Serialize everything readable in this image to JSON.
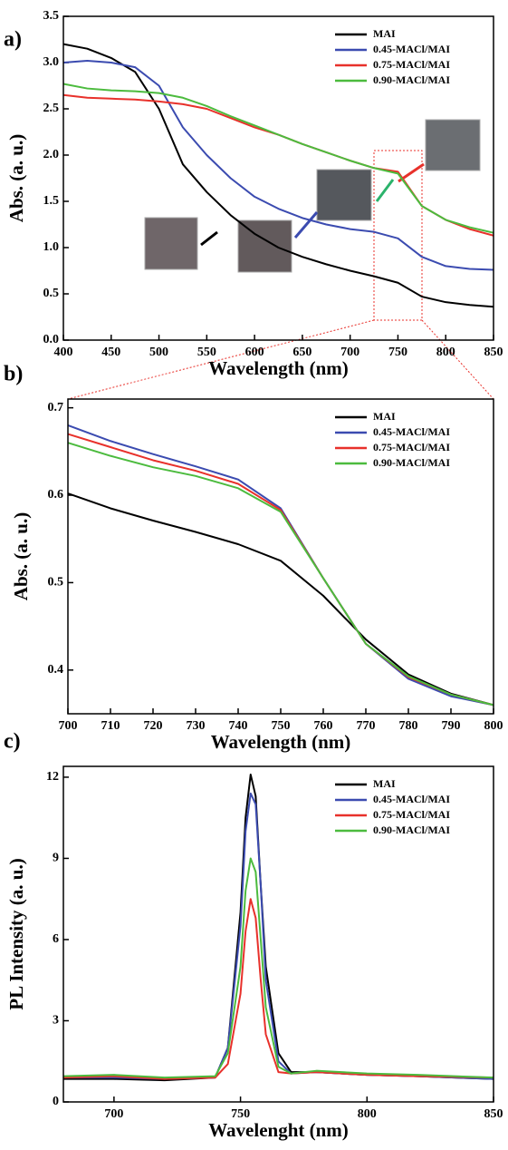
{
  "chart_data": [
    {
      "type": "line",
      "panel_label": "a)",
      "xlabel": "Wavelength (nm)",
      "ylabel": "Abs. (a. u.)",
      "x": [
        400,
        425,
        450,
        475,
        500,
        525,
        550,
        575,
        600,
        625,
        650,
        675,
        700,
        725,
        750,
        775,
        800,
        825,
        850
      ],
      "series": [
        {
          "name": "MAI",
          "color": "#000000",
          "values": [
            3.2,
            3.15,
            3.05,
            2.9,
            2.5,
            1.9,
            1.6,
            1.35,
            1.15,
            1.0,
            0.9,
            0.82,
            0.75,
            0.69,
            0.62,
            0.47,
            0.41,
            0.38,
            0.36
          ]
        },
        {
          "name": "0.45-MACl/MAI",
          "color": "#3b4bb0",
          "values": [
            3.0,
            3.02,
            3.0,
            2.95,
            2.75,
            2.3,
            2.0,
            1.75,
            1.55,
            1.42,
            1.32,
            1.25,
            1.2,
            1.17,
            1.1,
            0.9,
            0.8,
            0.77,
            0.76
          ]
        },
        {
          "name": "0.75-MACl/MAI",
          "color": "#e8312b",
          "values": [
            2.65,
            2.62,
            2.61,
            2.6,
            2.58,
            2.55,
            2.5,
            2.4,
            2.3,
            2.22,
            2.12,
            2.03,
            1.94,
            1.86,
            1.82,
            1.45,
            1.3,
            1.2,
            1.13
          ]
        },
        {
          "name": "0.90-MACl/MAI",
          "color": "#4cbb3e",
          "values": [
            2.77,
            2.72,
            2.7,
            2.69,
            2.67,
            2.62,
            2.53,
            2.42,
            2.32,
            2.22,
            2.12,
            2.03,
            1.94,
            1.86,
            1.8,
            1.45,
            1.3,
            1.22,
            1.16
          ]
        }
      ],
      "xlim": [
        400,
        850
      ],
      "xticks": [
        400,
        450,
        500,
        550,
        600,
        650,
        700,
        750,
        800,
        850
      ],
      "ylim": [
        0,
        3.5
      ],
      "yticks": [
        {
          "value": 0,
          "label": "0.0"
        },
        0.5,
        {
          "value": 1,
          "label": "1.0"
        },
        1.5,
        {
          "value": 2,
          "label": "2.0"
        },
        2.5,
        {
          "value": 3,
          "label": "3.0"
        },
        3.5
      ]
    },
    {
      "type": "line",
      "panel_label": "b)",
      "xlabel": "Wavelength (nm)",
      "ylabel": "Abs. (a. u.)",
      "x": [
        700,
        710,
        720,
        730,
        740,
        750,
        760,
        770,
        780,
        790,
        800
      ],
      "series": [
        {
          "name": "MAI",
          "color": "#000000",
          "values": [
            0.602,
            0.585,
            0.571,
            0.558,
            0.544,
            0.525,
            0.485,
            0.435,
            0.395,
            0.373,
            0.36
          ]
        },
        {
          "name": "0.45-MACl/MAI",
          "color": "#3b4bb0",
          "values": [
            0.68,
            0.662,
            0.647,
            0.633,
            0.618,
            0.585,
            0.505,
            0.43,
            0.39,
            0.37,
            0.36
          ]
        },
        {
          "name": "0.75-MACl/MAI",
          "color": "#e8312b",
          "values": [
            0.67,
            0.655,
            0.64,
            0.628,
            0.613,
            0.583,
            0.505,
            0.43,
            0.392,
            0.372,
            0.36
          ]
        },
        {
          "name": "0.90-MACl/MAI",
          "color": "#4cbb3e",
          "values": [
            0.66,
            0.645,
            0.632,
            0.622,
            0.608,
            0.581,
            0.505,
            0.43,
            0.393,
            0.372,
            0.36
          ]
        }
      ],
      "xlim": [
        700,
        800
      ],
      "xticks": [
        700,
        710,
        720,
        730,
        740,
        750,
        760,
        770,
        780,
        790,
        800
      ],
      "ylim": [
        0.35,
        0.71
      ],
      "yticks": [
        0.4,
        0.5,
        0.6,
        0.7
      ]
    },
    {
      "type": "line",
      "panel_label": "c)",
      "xlabel": "Wavelenght (nm)",
      "ylabel": "PL Intensity (a. u.)",
      "x": [
        680,
        700,
        720,
        740,
        745,
        750,
        752,
        754,
        756,
        758,
        760,
        765,
        770,
        780,
        800,
        820,
        850
      ],
      "series": [
        {
          "name": "MAI",
          "color": "#000000",
          "values": [
            0.85,
            0.85,
            0.8,
            0.9,
            2,
            7,
            10.5,
            12.1,
            11.3,
            8,
            5,
            1.8,
            1.1,
            1.1,
            1.0,
            0.95,
            0.85
          ]
        },
        {
          "name": "0.45-MACl/MAI",
          "color": "#3b4bb0",
          "values": [
            0.9,
            0.9,
            0.85,
            0.9,
            2,
            6.5,
            10,
            11.4,
            11,
            8,
            4.5,
            1.5,
            1.05,
            1.1,
            1.0,
            0.95,
            0.85
          ]
        },
        {
          "name": "0.75-MACl/MAI",
          "color": "#e8312b",
          "values": [
            0.9,
            0.95,
            0.85,
            0.9,
            1.4,
            4,
            6.3,
            7.5,
            6.8,
            4.5,
            2.5,
            1.1,
            1.05,
            1.1,
            1.0,
            0.95,
            0.9
          ]
        },
        {
          "name": "0.90-MACl/MAI",
          "color": "#4cbb3e",
          "values": [
            0.95,
            1.0,
            0.9,
            0.95,
            1.8,
            5,
            7.8,
            9.0,
            8.5,
            6,
            3.5,
            1.3,
            1.05,
            1.15,
            1.05,
            1.0,
            0.9
          ]
        }
      ],
      "xlim": [
        680,
        850
      ],
      "xticks": [
        700,
        750,
        800,
        850
      ],
      "ylim": [
        0,
        12.4
      ],
      "yticks": [
        0,
        3,
        6,
        9,
        12
      ]
    }
  ]
}
